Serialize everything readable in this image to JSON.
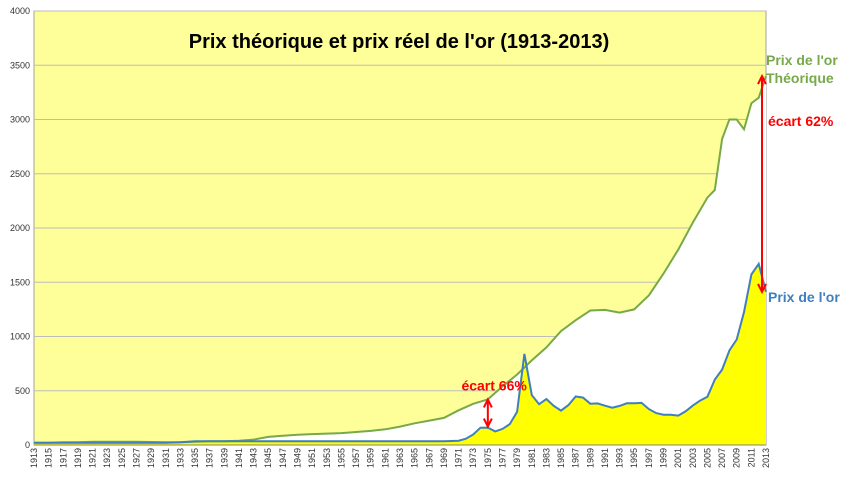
{
  "chart_data": {
    "type": "area",
    "title": "Prix théorique et prix réel de l'or (1913-2013)",
    "xlabel": "",
    "ylabel": "",
    "ylim": [
      0,
      4000
    ],
    "xlim": [
      1913,
      2013
    ],
    "yticks": [
      0,
      500,
      1000,
      1500,
      2000,
      2500,
      3000,
      3500,
      4000
    ],
    "xticks": [
      1913,
      1915,
      1917,
      1919,
      1921,
      1923,
      1925,
      1927,
      1929,
      1931,
      1933,
      1935,
      1937,
      1939,
      1941,
      1943,
      1945,
      1947,
      1949,
      1951,
      1953,
      1955,
      1957,
      1959,
      1961,
      1963,
      1965,
      1967,
      1969,
      1971,
      1973,
      1975,
      1977,
      1979,
      1981,
      1983,
      1985,
      1987,
      1989,
      1991,
      1993,
      1995,
      1997,
      1999,
      2001,
      2003,
      2005,
      2007,
      2009,
      2011,
      2013
    ],
    "grid": true,
    "colors": {
      "background": "#ffff99",
      "area_fill": "#ffff00",
      "theoretical_line": "#77a94a",
      "real_line": "#3f7fbf",
      "annotation": "#ff0000",
      "grid": "#bdbdbd"
    },
    "series": [
      {
        "name": "Prix de l'or Théorique",
        "name_lines": [
          "Prix de l'or",
          "Théorique"
        ],
        "color": "#77a94a",
        "x": [
          1913,
          1915,
          1917,
          1919,
          1921,
          1923,
          1925,
          1927,
          1929,
          1931,
          1933,
          1935,
          1937,
          1939,
          1941,
          1943,
          1945,
          1947,
          1949,
          1951,
          1953,
          1955,
          1957,
          1959,
          1961,
          1963,
          1965,
          1967,
          1969,
          1971,
          1973,
          1975,
          1977,
          1979,
          1981,
          1983,
          1985,
          1987,
          1989,
          1991,
          1993,
          1995,
          1997,
          1999,
          2001,
          2003,
          2005,
          2006,
          2007,
          2008,
          2009,
          2010,
          2011,
          2012,
          2013
        ],
        "values": [
          20,
          20,
          25,
          25,
          30,
          30,
          30,
          30,
          28,
          25,
          25,
          30,
          35,
          35,
          40,
          50,
          75,
          85,
          95,
          100,
          105,
          110,
          120,
          130,
          145,
          170,
          200,
          225,
          250,
          320,
          380,
          420,
          540,
          650,
          780,
          900,
          1050,
          1150,
          1240,
          1245,
          1220,
          1250,
          1380,
          1580,
          1800,
          2050,
          2280,
          2350,
          2820,
          3000,
          3000,
          2910,
          3150,
          3200,
          3400
        ]
      },
      {
        "name": "Prix de l'or",
        "name_lines": [
          "Prix de l'or"
        ],
        "color": "#3f7fbf",
        "x": [
          1913,
          1915,
          1917,
          1919,
          1921,
          1923,
          1925,
          1927,
          1929,
          1931,
          1933,
          1935,
          1937,
          1939,
          1941,
          1943,
          1945,
          1947,
          1949,
          1951,
          1953,
          1955,
          1957,
          1959,
          1961,
          1963,
          1965,
          1967,
          1969,
          1971,
          1972,
          1973,
          1974,
          1975,
          1976,
          1977,
          1978,
          1979,
          1980,
          1981,
          1982,
          1983,
          1984,
          1985,
          1986,
          1987,
          1988,
          1989,
          1990,
          1991,
          1992,
          1993,
          1994,
          1995,
          1996,
          1997,
          1998,
          1999,
          2000,
          2001,
          2002,
          2003,
          2004,
          2005,
          2006,
          2007,
          2008,
          2009,
          2010,
          2011,
          2012,
          2013
        ],
        "values": [
          20,
          20,
          20,
          20,
          20,
          20,
          20,
          20,
          20,
          20,
          26,
          35,
          35,
          35,
          35,
          35,
          35,
          35,
          35,
          35,
          35,
          35,
          35,
          35,
          35,
          35,
          35,
          35,
          35,
          40,
          58,
          97,
          159,
          160,
          125,
          148,
          193,
          306,
          840,
          460,
          376,
          424,
          361,
          317,
          368,
          447,
          437,
          381,
          383,
          362,
          344,
          360,
          384,
          384,
          388,
          331,
          294,
          279,
          279,
          271,
          310,
          363,
          409,
          444,
          603,
          695,
          871,
          972,
          1225,
          1572,
          1669,
          1411
        ]
      }
    ],
    "annotations": [
      {
        "text": "écart 66%",
        "x": 1975,
        "y_from": 170,
        "y_to": 420
      },
      {
        "text": "écart 62%",
        "x": 2013,
        "y_from": 1411,
        "y_to": 3400
      }
    ]
  }
}
